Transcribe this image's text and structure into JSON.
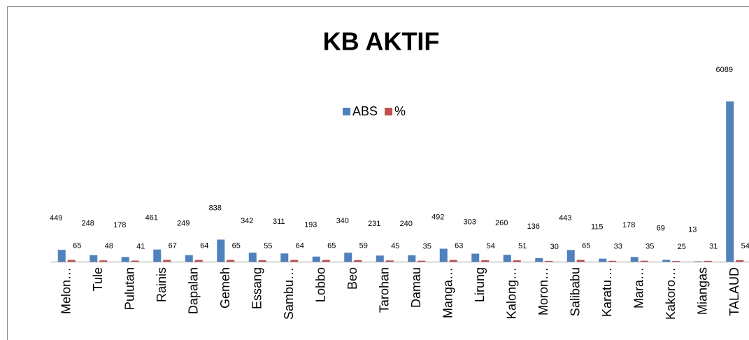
{
  "chart_data": {
    "type": "bar",
    "title": "KB AKTIF",
    "categories": [
      "Melon…",
      "Tule",
      "Pulutan",
      "Rainis",
      "Dapalan",
      "Gemeh",
      "Essang",
      "Sambu…",
      "Lobbo",
      "Beo",
      "Tarohan",
      "Damau",
      "Manga…",
      "Lirung",
      "Kalong…",
      "Moron…",
      "Salibabu",
      "Karatu…",
      "Mara…",
      "Kakoro…",
      "Miangas",
      "TALAUD"
    ],
    "series": [
      {
        "name": "ABS",
        "color": "#4f81bd",
        "values": [
          449,
          248,
          178,
          461,
          249,
          838,
          342,
          311,
          193,
          340,
          231,
          240,
          492,
          303,
          260,
          136,
          443,
          115,
          178,
          69,
          13,
          6089
        ]
      },
      {
        "name": "%",
        "color": "#c0504d",
        "values": [
          65,
          48,
          41,
          67,
          64,
          65,
          55,
          64,
          65,
          59,
          45,
          35,
          63,
          54,
          51,
          30,
          65,
          33,
          35,
          25,
          31,
          54
        ]
      }
    ],
    "legend": "top"
  }
}
